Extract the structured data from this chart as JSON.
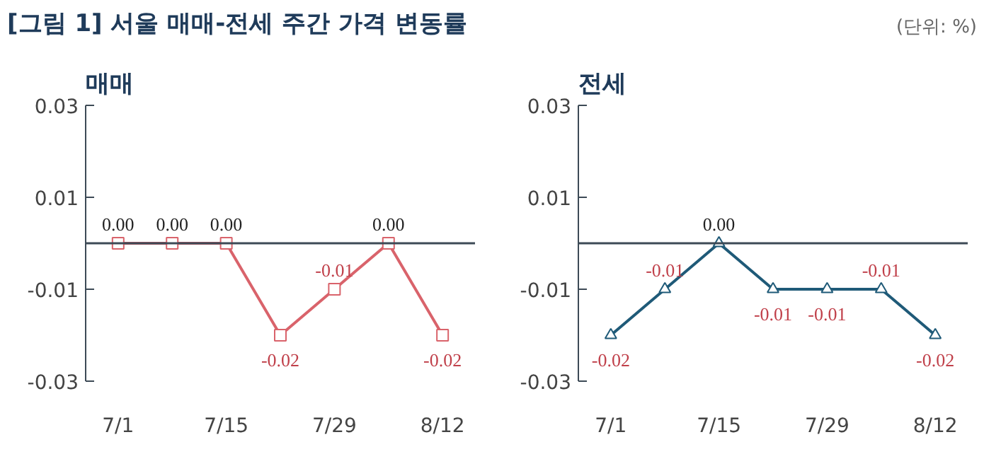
{
  "chart_data": [
    {
      "type": "line",
      "title": "매매",
      "annotations": [
        "[그림 1] 서울 매매-전세 주간 가격 변동률",
        "(단위: %)"
      ],
      "categories": [
        "7/1",
        null,
        "7/15",
        null,
        "7/29",
        null,
        "8/12"
      ],
      "ylim": [
        -0.03,
        0.03
      ],
      "yticks": [
        0.03,
        0.01,
        -0.01,
        -0.03
      ],
      "marker": "square",
      "grid": false,
      "ref_lines": [
        {
          "axis": "y",
          "value": 0,
          "color": "#3d4a56"
        }
      ],
      "series": [
        {
          "color": "#d9636b",
          "values": [
            0,
            0,
            0,
            -0.02,
            -0.01,
            0,
            -0.02
          ],
          "value_labels": [
            "0.00",
            "0.00",
            "0.00",
            "-0.02",
            "-0.01",
            "0.00",
            "-0.02"
          ]
        }
      ]
    },
    {
      "type": "line",
      "title": "전세",
      "categories": [
        "7/1",
        null,
        "7/15",
        null,
        "7/29",
        null,
        "8/12"
      ],
      "ylim": [
        -0.03,
        0.03
      ],
      "yticks": [
        0.03,
        0.01,
        -0.01,
        -0.03
      ],
      "marker": "triangle",
      "grid": false,
      "ref_lines": [
        {
          "axis": "y",
          "value": 0,
          "color": "#3d4a56"
        }
      ],
      "series": [
        {
          "color": "#1f5a78",
          "values": [
            -0.02,
            -0.01,
            0,
            -0.01,
            -0.01,
            -0.01,
            -0.02
          ],
          "value_labels": [
            "-0.02",
            "-0.01",
            "0.00",
            "-0.01",
            "-0.01",
            "-0.01",
            "-0.02"
          ]
        }
      ]
    }
  ]
}
